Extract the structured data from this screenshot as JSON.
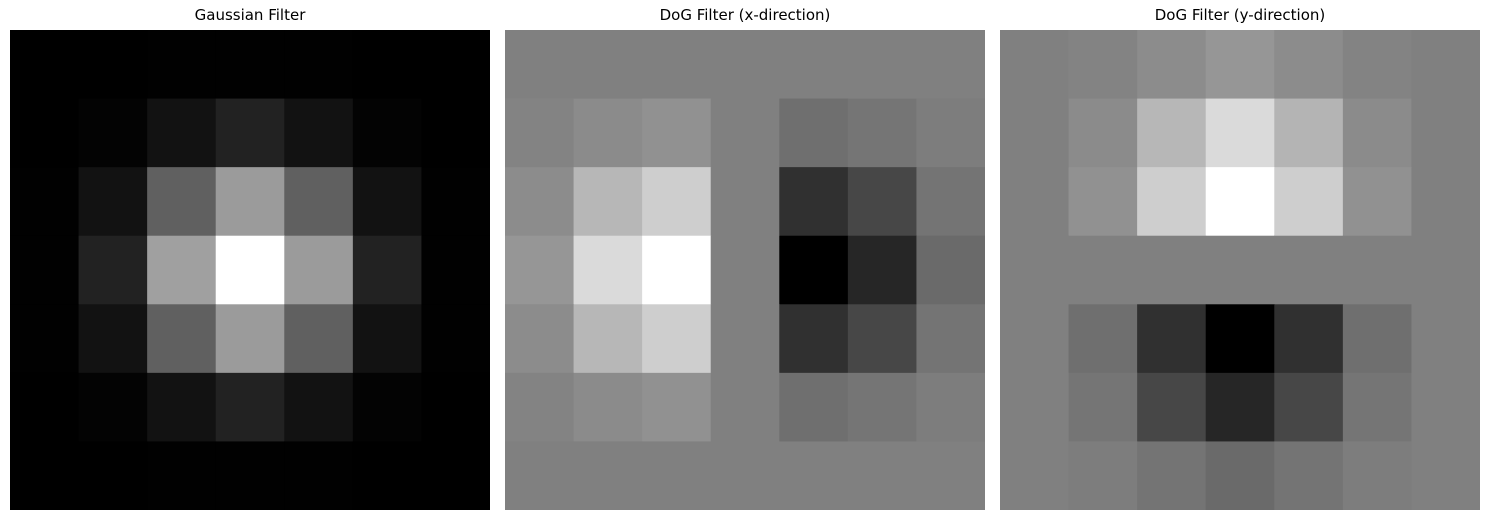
{
  "chart_data": [
    {
      "type": "heatmap",
      "title": "Gaussian Filter",
      "colormap": "gray",
      "rows": 7,
      "cols": 7,
      "values": [
        [
          0,
          0,
          1,
          1,
          1,
          0,
          0
        ],
        [
          0,
          3,
          18,
          34,
          18,
          3,
          0
        ],
        [
          1,
          18,
          96,
          155,
          96,
          18,
          1
        ],
        [
          1,
          34,
          160,
          255,
          155,
          34,
          1
        ],
        [
          1,
          18,
          96,
          155,
          96,
          18,
          1
        ],
        [
          0,
          3,
          18,
          34,
          18,
          3,
          0
        ],
        [
          0,
          0,
          1,
          1,
          1,
          0,
          0
        ]
      ]
    },
    {
      "type": "heatmap",
      "title": "DoG Filter (x-direction)",
      "colormap": "gray",
      "rows": 7,
      "cols": 7,
      "values": [
        [
          128,
          128,
          128,
          128,
          128,
          128,
          128
        ],
        [
          131,
          139,
          145,
          128,
          111,
          117,
          125
        ],
        [
          140,
          183,
          206,
          128,
          48,
          71,
          116
        ],
        [
          150,
          218,
          255,
          128,
          0,
          38,
          106
        ],
        [
          140,
          183,
          206,
          128,
          48,
          71,
          116
        ],
        [
          131,
          139,
          145,
          128,
          111,
          117,
          125
        ],
        [
          128,
          128,
          128,
          128,
          128,
          128,
          128
        ]
      ]
    },
    {
      "type": "heatmap",
      "title": "DoG Filter (y-direction)",
      "colormap": "gray",
      "rows": 7,
      "cols": 7,
      "values": [
        [
          128,
          131,
          140,
          150,
          140,
          131,
          128
        ],
        [
          128,
          139,
          183,
          218,
          180,
          139,
          128
        ],
        [
          128,
          145,
          206,
          255,
          206,
          145,
          128
        ],
        [
          128,
          128,
          128,
          128,
          128,
          128,
          128
        ],
        [
          128,
          111,
          48,
          0,
          48,
          111,
          128
        ],
        [
          128,
          117,
          71,
          38,
          71,
          117,
          128
        ],
        [
          128,
          125,
          116,
          106,
          116,
          125,
          128
        ]
      ]
    }
  ]
}
